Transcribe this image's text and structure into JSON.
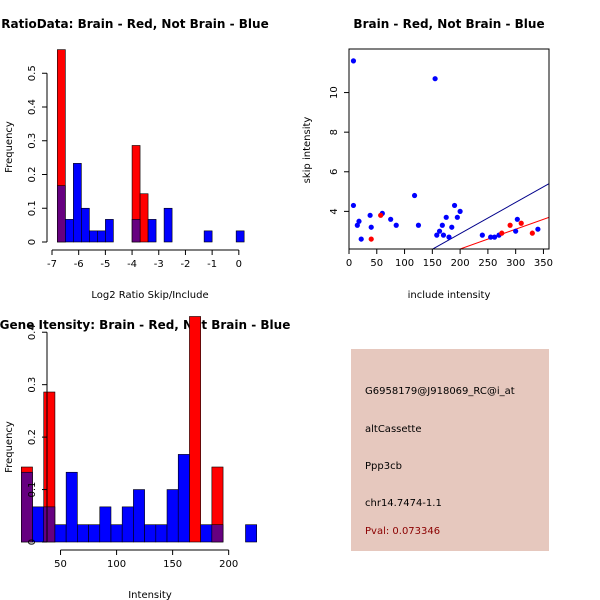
{
  "chart_data": [
    {
      "type": "histogram",
      "title": "RatioData: Brain - Red, Not Brain - Blue",
      "xlabel": "Log2 Ratio Skip/Include",
      "ylabel": "Frequency",
      "xlim": [
        -7,
        0.4
      ],
      "ylim": [
        0,
        0.6
      ],
      "xticks": [
        -7,
        -6,
        -5,
        -4,
        -3,
        -2,
        -1,
        0
      ],
      "yticks": [
        0,
        0.1,
        0.2,
        0.3,
        0.4,
        0.5
      ],
      "red_bars": [
        {
          "x0": -6.8,
          "x1": -6.5,
          "h": 0.57
        },
        {
          "x0": -4.0,
          "x1": -3.7,
          "h": 0.286
        },
        {
          "x0": -3.7,
          "x1": -3.4,
          "h": 0.143
        }
      ],
      "blue_bars": [
        {
          "x0": -6.8,
          "x1": -6.5,
          "h": 0.167
        },
        {
          "x0": -6.5,
          "x1": -6.2,
          "h": 0.067
        },
        {
          "x0": -6.2,
          "x1": -5.9,
          "h": 0.233
        },
        {
          "x0": -5.9,
          "x1": -5.6,
          "h": 0.1
        },
        {
          "x0": -5.6,
          "x1": -5.3,
          "h": 0.033
        },
        {
          "x0": -5.3,
          "x1": -5.0,
          "h": 0.033
        },
        {
          "x0": -5.0,
          "x1": -4.7,
          "h": 0.067
        },
        {
          "x0": -4.0,
          "x1": -3.7,
          "h": 0.067
        },
        {
          "x0": -3.4,
          "x1": -3.1,
          "h": 0.067
        },
        {
          "x0": -2.8,
          "x1": -2.5,
          "h": 0.1
        },
        {
          "x0": -1.3,
          "x1": -1.0,
          "h": 0.033
        },
        {
          "x0": -0.1,
          "x1": 0.2,
          "h": 0.033
        }
      ]
    },
    {
      "type": "scatter",
      "title": "Brain - Red, Not Brain - Blue",
      "xlabel": "include intensity",
      "ylabel": "skip intensity",
      "xlim": [
        0,
        360
      ],
      "ylim": [
        2.1,
        12.2
      ],
      "xticks": [
        0,
        50,
        100,
        150,
        200,
        250,
        300,
        350
      ],
      "yticks": [
        4,
        6,
        8,
        10
      ],
      "blue_points": [
        [
          8,
          11.6
        ],
        [
          8,
          4.3
        ],
        [
          15,
          3.3
        ],
        [
          18,
          3.5
        ],
        [
          22,
          2.6
        ],
        [
          38,
          3.8
        ],
        [
          40,
          3.2
        ],
        [
          60,
          3.9
        ],
        [
          75,
          3.6
        ],
        [
          85,
          3.3
        ],
        [
          118,
          4.8
        ],
        [
          125,
          3.3
        ],
        [
          155,
          10.7
        ],
        [
          158,
          2.8
        ],
        [
          163,
          3.0
        ],
        [
          168,
          3.3
        ],
        [
          170,
          2.8
        ],
        [
          175,
          3.7
        ],
        [
          180,
          2.7
        ],
        [
          185,
          3.2
        ],
        [
          190,
          4.3
        ],
        [
          195,
          3.7
        ],
        [
          200,
          4.0
        ],
        [
          240,
          2.8
        ],
        [
          255,
          2.7
        ],
        [
          262,
          2.7
        ],
        [
          270,
          2.8
        ],
        [
          300,
          3.0
        ],
        [
          303,
          3.6
        ],
        [
          340,
          3.1
        ]
      ],
      "red_points": [
        [
          40,
          2.6
        ],
        [
          57,
          3.8
        ],
        [
          275,
          2.9
        ],
        [
          290,
          3.3
        ],
        [
          310,
          3.4
        ],
        [
          330,
          2.9
        ]
      ],
      "blue_line": {
        "x": [
          100,
          360
        ],
        "y": [
          1.3,
          5.4
        ]
      },
      "red_line": {
        "x": [
          190,
          360
        ],
        "y": [
          2.0,
          3.7
        ]
      }
    },
    {
      "type": "histogram",
      "title": "Gene Itensity: Brain - Red, Not Brain - Blue",
      "xlabel": "Intensity",
      "ylabel": "Frequency",
      "xlim": [
        10,
        230
      ],
      "ylim": [
        0,
        0.45
      ],
      "xticks": [
        50,
        100,
        150,
        200
      ],
      "yticks": [
        0,
        0.1,
        0.2,
        0.3,
        0.4
      ],
      "red_bars": [
        {
          "x0": 15,
          "x1": 25,
          "h": 0.143
        },
        {
          "x0": 35,
          "x1": 45,
          "h": 0.286
        },
        {
          "x0": 165,
          "x1": 175,
          "h": 0.43
        },
        {
          "x0": 185,
          "x1": 195,
          "h": 0.143
        }
      ],
      "blue_bars": [
        {
          "x0": 15,
          "x1": 25,
          "h": 0.133
        },
        {
          "x0": 25,
          "x1": 35,
          "h": 0.067
        },
        {
          "x0": 35,
          "x1": 45,
          "h": 0.067
        },
        {
          "x0": 45,
          "x1": 55,
          "h": 0.033
        },
        {
          "x0": 55,
          "x1": 65,
          "h": 0.133
        },
        {
          "x0": 65,
          "x1": 75,
          "h": 0.033
        },
        {
          "x0": 75,
          "x1": 85,
          "h": 0.033
        },
        {
          "x0": 85,
          "x1": 95,
          "h": 0.067
        },
        {
          "x0": 95,
          "x1": 105,
          "h": 0.033
        },
        {
          "x0": 105,
          "x1": 115,
          "h": 0.067
        },
        {
          "x0": 115,
          "x1": 125,
          "h": 0.1
        },
        {
          "x0": 125,
          "x1": 135,
          "h": 0.033
        },
        {
          "x0": 135,
          "x1": 145,
          "h": 0.033
        },
        {
          "x0": 145,
          "x1": 155,
          "h": 0.1
        },
        {
          "x0": 155,
          "x1": 165,
          "h": 0.167
        },
        {
          "x0": 175,
          "x1": 185,
          "h": 0.033
        },
        {
          "x0": 185,
          "x1": 195,
          "h": 0.033
        },
        {
          "x0": 215,
          "x1": 225,
          "h": 0.033
        }
      ]
    }
  ],
  "colors": {
    "red": "#ff0000",
    "blue": "#0000ff",
    "overlap": "#660080",
    "red_line": "#ff0000",
    "blue_line": "#00008b",
    "panel_bg": "#e6c8be",
    "pval_text": "#8b0000"
  },
  "info": {
    "probe": "G6958179@J918069_RC@i_at",
    "event_type": "altCassette",
    "gene": "Ppp3cb",
    "location": "chr14.7474-1.1",
    "pval": "Pval: 0.073346"
  }
}
